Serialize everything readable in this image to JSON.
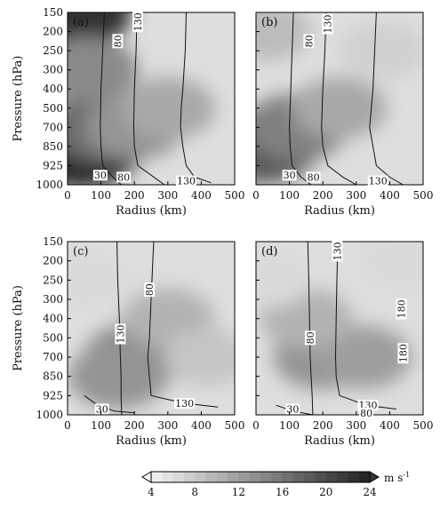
{
  "chart_data": [
    {
      "type": "heatmap",
      "panel_label": "(a)",
      "xlabel": "Radius (km)",
      "ylabel": "Pressure (hPa)",
      "x_ticks": [
        "0",
        "100",
        "200",
        "300",
        "400",
        "500"
      ],
      "y_ticks": [
        "150",
        "200",
        "250",
        "300",
        "400",
        "500",
        "700",
        "850",
        "925",
        "1000"
      ],
      "xlim": [
        0,
        500
      ],
      "contour_labels": [
        "80",
        "130",
        "30",
        "80",
        "130"
      ],
      "shading_blobs": [
        {
          "r": 10,
          "level": 0,
          "value": 23
        },
        {
          "r": 40,
          "level": 7,
          "value": 25
        },
        {
          "r": 100,
          "level": 6,
          "value": 17
        },
        {
          "r": 200,
          "level": 6,
          "value": 13
        },
        {
          "r": 300,
          "level": 5,
          "value": 11
        },
        {
          "r": 60,
          "level": 3,
          "value": 14
        }
      ],
      "contours": [
        {
          "value": 30,
          "points": [
            [
              110,
              0
            ],
            [
              105,
              2
            ],
            [
              100,
              4
            ],
            [
              98,
              6
            ],
            [
              100,
              7
            ],
            [
              105,
              8
            ],
            [
              130,
              8.5
            ],
            [
              160,
              9
            ]
          ]
        },
        {
          "value": 80,
          "points": [
            [
              208,
              0
            ],
            [
              205,
              2
            ],
            [
              200,
              4
            ],
            [
              198,
              6
            ],
            [
              200,
              7
            ],
            [
              210,
              8
            ],
            [
              250,
              8.5
            ],
            [
              290,
              9
            ]
          ]
        },
        {
          "value": 130,
          "points": [
            [
              355,
              0
            ],
            [
              352,
              2
            ],
            [
              345,
              4
            ],
            [
              340,
              5
            ],
            [
              338,
              6
            ],
            [
              345,
              7
            ],
            [
              355,
              8
            ],
            [
              380,
              8.6
            ],
            [
              430,
              8.9
            ]
          ]
        }
      ]
    },
    {
      "type": "heatmap",
      "panel_label": "(b)",
      "xlabel": "Radius (km)",
      "ylabel": "",
      "x_ticks": [
        "0",
        "100",
        "200",
        "300",
        "400",
        "500"
      ],
      "y_ticks": [],
      "xlim": [
        0,
        500
      ],
      "contour_labels": [
        "80",
        "130",
        "30",
        "80",
        "130"
      ],
      "shading_blobs": [
        {
          "r": 20,
          "level": 7,
          "value": 19
        },
        {
          "r": 120,
          "level": 6,
          "value": 15
        },
        {
          "r": 250,
          "level": 5,
          "value": 11
        },
        {
          "r": 30,
          "level": 1,
          "value": 9
        },
        {
          "r": 380,
          "level": 2,
          "value": 7
        }
      ],
      "contours": [
        {
          "value": 30,
          "points": [
            [
              112,
              0
            ],
            [
              108,
              2
            ],
            [
              104,
              4
            ],
            [
              100,
              6
            ],
            [
              102,
              7
            ],
            [
              108,
              8
            ],
            [
              135,
              8.6
            ],
            [
              165,
              9
            ]
          ]
        },
        {
          "value": 80,
          "points": [
            [
              210,
              0
            ],
            [
              206,
              2
            ],
            [
              200,
              4
            ],
            [
              196,
              6
            ],
            [
              200,
              7
            ],
            [
              215,
              8
            ],
            [
              260,
              8.6
            ],
            [
              300,
              9
            ]
          ]
        },
        {
          "value": 130,
          "points": [
            [
              360,
              0
            ],
            [
              355,
              2
            ],
            [
              350,
              4
            ],
            [
              345,
              5
            ],
            [
              340,
              6
            ],
            [
              350,
              7
            ],
            [
              360,
              8
            ],
            [
              400,
              8.6
            ],
            [
              440,
              9
            ]
          ]
        }
      ]
    },
    {
      "type": "heatmap",
      "panel_label": "(c)",
      "xlabel": "Radius (km)",
      "ylabel": "Pressure (hPa)",
      "x_ticks": [
        "0",
        "100",
        "200",
        "300",
        "400",
        "500"
      ],
      "y_ticks": [
        "150",
        "200",
        "250",
        "300",
        "400",
        "500",
        "700",
        "850",
        "925",
        "1000"
      ],
      "xlim": [
        0,
        500
      ],
      "contour_labels": [
        "130",
        "80",
        "130",
        "30"
      ],
      "shading_blobs": [
        {
          "r": 200,
          "level": 6,
          "value": 14
        },
        {
          "r": 150,
          "level": 7,
          "value": 13
        },
        {
          "r": 300,
          "level": 4,
          "value": 10
        },
        {
          "r": 50,
          "level": 2,
          "value": 6
        },
        {
          "r": 420,
          "level": 6,
          "value": 8
        }
      ],
      "contours": [
        {
          "value": 80,
          "points": [
            [
              148,
              0
            ],
            [
              150,
              2
            ],
            [
              155,
              4
            ],
            [
              158,
              6
            ],
            [
              160,
              7
            ],
            [
              160,
              8
            ],
            [
              162,
              9
            ]
          ]
        },
        {
          "value": 130,
          "points": [
            [
              258,
              0
            ],
            [
              255,
              1
            ],
            [
              250,
              3
            ],
            [
              245,
              5
            ],
            [
              240,
              6
            ],
            [
              245,
              7
            ],
            [
              250,
              8
            ],
            [
              350,
              8.4
            ],
            [
              450,
              8.6
            ]
          ]
        },
        {
          "value": 30,
          "points": [
            [
              50,
              8
            ],
            [
              90,
              8.5
            ],
            [
              140,
              8.8
            ],
            [
              200,
              8.9
            ]
          ]
        }
      ]
    },
    {
      "type": "heatmap",
      "panel_label": "(d)",
      "xlabel": "Radius (km)",
      "ylabel": "",
      "x_ticks": [
        "0",
        "100",
        "200",
        "300",
        "400",
        "500"
      ],
      "y_ticks": [],
      "xlim": [
        0,
        500
      ],
      "contour_labels": [
        "80",
        "130",
        "180",
        "180",
        "130",
        "30",
        "80"
      ],
      "shading_blobs": [
        {
          "r": 200,
          "level": 6,
          "value": 13
        },
        {
          "r": 320,
          "level": 6,
          "value": 12
        },
        {
          "r": 150,
          "level": 4,
          "value": 10
        },
        {
          "r": 40,
          "level": 2,
          "value": 6
        },
        {
          "r": 440,
          "level": 1,
          "value": 6
        }
      ],
      "contours": [
        {
          "value": 80,
          "points": [
            [
              155,
              0
            ],
            [
              158,
              2
            ],
            [
              160,
              4
            ],
            [
              162,
              6
            ],
            [
              165,
              7
            ],
            [
              168,
              8
            ],
            [
              170,
              9
            ]
          ]
        },
        {
          "value": 130,
          "points": [
            [
              245,
              0
            ],
            [
              242,
              2
            ],
            [
              240,
              4
            ],
            [
              238,
              6
            ],
            [
              240,
              7
            ],
            [
              250,
              8
            ],
            [
              330,
              8.5
            ],
            [
              420,
              8.7
            ]
          ]
        },
        {
          "value": 30,
          "points": [
            [
              60,
              8.5
            ],
            [
              110,
              8.8
            ],
            [
              170,
              9
            ]
          ]
        }
      ]
    }
  ],
  "colorbar": {
    "ticks": [
      "4",
      "8",
      "12",
      "16",
      "20",
      "24"
    ],
    "unit": "m s",
    "unit_superscript": "-1"
  }
}
